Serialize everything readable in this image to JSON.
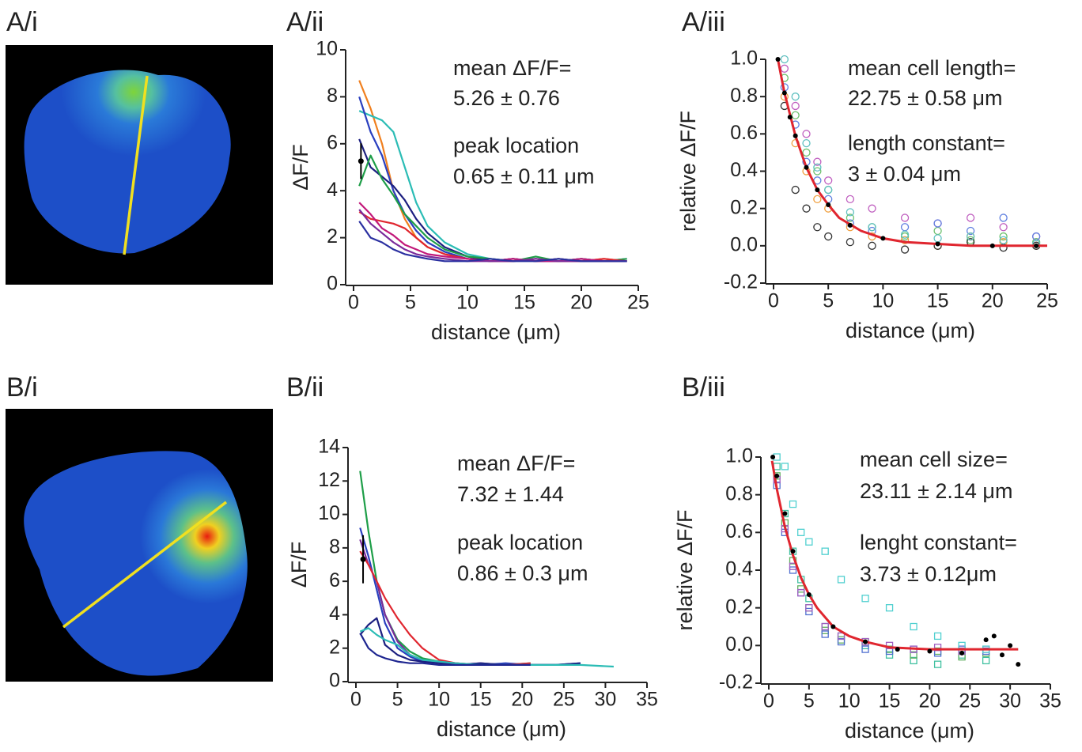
{
  "images": [
    {
      "label": "A/i"
    },
    {
      "label": "B/i"
    }
  ],
  "chart_data": [
    {
      "type": "line",
      "title": "A/ii",
      "xlabel": "distance (μm)",
      "ylabel": "ΔF/F",
      "xlim": [
        0,
        25
      ],
      "xticks": [
        0,
        5,
        10,
        15,
        20,
        25
      ],
      "ylim": [
        0,
        10
      ],
      "yticks": [
        0,
        2,
        4,
        6,
        8,
        10
      ],
      "annotations": [
        "mean ΔF/F=",
        "5.26 ± 0.76",
        "peak location",
        "0.65 ± 0.11 μm"
      ],
      "peak": {
        "x": 0.65,
        "y": 5.26,
        "yerr": 0.76
      },
      "x": [
        0.5,
        1.5,
        2.5,
        3.5,
        4.5,
        5.5,
        6.5,
        8,
        10,
        12,
        14,
        16,
        18,
        20,
        22,
        24
      ],
      "series": [
        {
          "color": "#f07f1e",
          "values": [
            8.7,
            7.5,
            6,
            4,
            2.8,
            2,
            1.6,
            1.3,
            1.1,
            1,
            1.1,
            1,
            1.1,
            1,
            1.1,
            1
          ]
        },
        {
          "color": "#2bbcb5",
          "values": [
            7.4,
            7.2,
            7,
            6.5,
            5,
            3.5,
            2.5,
            1.8,
            1.3,
            1.1,
            1,
            1.1,
            1,
            1.1,
            1,
            1
          ]
        },
        {
          "color": "#2a3fbf",
          "values": [
            8,
            6.5,
            5.5,
            4,
            3,
            2.3,
            1.8,
            1.4,
            1.1,
            1,
            1.1,
            1,
            1,
            1.1,
            1,
            1.1
          ]
        },
        {
          "color": "#1c1f80",
          "values": [
            6.2,
            5,
            4.6,
            4.2,
            3.6,
            2.8,
            2.2,
            1.6,
            1.2,
            1,
            1.1,
            1,
            1.1,
            1,
            1,
            1
          ]
        },
        {
          "color": "#1e9e48",
          "values": [
            4.2,
            5.5,
            4.5,
            3.8,
            3,
            2.5,
            2,
            1.5,
            1.2,
            1.1,
            1,
            1.2,
            1,
            1.1,
            1,
            1.1
          ]
        },
        {
          "color": "#e0262f",
          "values": [
            3.1,
            2.8,
            2.7,
            2.6,
            2.4,
            2,
            1.6,
            1.3,
            1.1,
            1,
            1,
            1.1,
            1,
            1,
            1.1,
            1
          ]
        },
        {
          "color": "#c2187a",
          "values": [
            3.5,
            3,
            2.4,
            2.1,
            1.7,
            1.5,
            1.3,
            1.2,
            1.1,
            1,
            1.1,
            1,
            1,
            1.1,
            1,
            1
          ]
        },
        {
          "color": "#7a2a9a",
          "values": [
            3.2,
            2.6,
            2.2,
            1.8,
            1.5,
            1.3,
            1.2,
            1.1,
            1,
            1,
            1,
            1.1,
            1,
            1,
            1,
            1
          ]
        },
        {
          "color": "#2a2fa0",
          "values": [
            2.7,
            2,
            1.8,
            1.5,
            1.3,
            1.2,
            1.1,
            1,
            1,
            1.1,
            1,
            1,
            1.1,
            1,
            1,
            1
          ]
        }
      ]
    },
    {
      "type": "scatter",
      "title": "A/iii",
      "xlabel": "distance (μm)",
      "ylabel": "relative ΔF/F",
      "marker": "circle",
      "xlim": [
        0,
        25
      ],
      "xticks": [
        0,
        5,
        10,
        15,
        20,
        25
      ],
      "ylim": [
        -0.2,
        1.0
      ],
      "yticks": [
        -0.2,
        {
          "value": 0,
          "label": "0.0"
        },
        0.2,
        0.4,
        0.6,
        0.8,
        {
          "value": 1,
          "label": "1.0"
        }
      ],
      "annotations": [
        "mean cell length=",
        "22.75 ± 0.58 μm",
        "length constant=",
        "3 ± 0.04 μm"
      ],
      "x": [
        1,
        2,
        3,
        4,
        5,
        7,
        9,
        12,
        15,
        18,
        21,
        24
      ],
      "series": [
        {
          "color": "#6cc06c",
          "values": [
            0.9,
            0.7,
            0.5,
            0.4,
            0.3,
            0.15,
            0.1,
            0.05,
            0.08,
            0.03,
            0.05,
            0.02
          ]
        },
        {
          "color": "#c060c0",
          "values": [
            0.95,
            0.75,
            0.6,
            0.45,
            0.35,
            0.25,
            0.2,
            0.15,
            0.12,
            0.15,
            0.1,
            0.05
          ]
        },
        {
          "color": "#6080e0",
          "values": [
            0.85,
            0.65,
            0.45,
            0.35,
            0.25,
            0.12,
            0.08,
            0.1,
            0.12,
            0.08,
            0.15,
            0.05
          ]
        },
        {
          "color": "#f0a040",
          "values": [
            0.8,
            0.55,
            0.4,
            0.25,
            0.2,
            0.1,
            0.05,
            0.03,
            0,
            0.05,
            0.02,
            0
          ]
        },
        {
          "color": "#333333",
          "values": [
            0.75,
            0.3,
            0.2,
            0.1,
            0.05,
            0.02,
            0,
            -0.02,
            0,
            0.02,
            -0.01,
            0
          ]
        },
        {
          "color": "#60c0c0",
          "values": [
            1.0,
            0.8,
            0.55,
            0.42,
            0.3,
            0.18,
            0.1,
            0.06,
            0.04,
            0.05,
            0.03,
            0.01
          ]
        }
      ],
      "mean": {
        "color": "#000000",
        "x": [
          0.4,
          1,
          1.5,
          2,
          3,
          4,
          5,
          7,
          10,
          15,
          20,
          24
        ],
        "values": [
          1.0,
          0.82,
          0.69,
          0.59,
          0.42,
          0.3,
          0.22,
          0.11,
          0.04,
          0.01,
          0.0,
          0.0
        ]
      },
      "fit": {
        "color": "#e0262f",
        "x": [
          0.4,
          1,
          2,
          3,
          4,
          5,
          6,
          8,
          10,
          12,
          15,
          18,
          21,
          25
        ],
        "values": [
          1.0,
          0.82,
          0.59,
          0.42,
          0.3,
          0.22,
          0.15,
          0.08,
          0.04,
          0.02,
          0.01,
          0.0,
          0.0,
          0.0
        ]
      }
    },
    {
      "type": "line",
      "title": "B/ii",
      "xlabel": "distance (μm)",
      "ylabel": "ΔF/F",
      "xlim": [
        0,
        35
      ],
      "xticks": [
        0,
        5,
        10,
        15,
        20,
        25,
        30,
        35
      ],
      "ylim": [
        0,
        14
      ],
      "yticks": [
        0,
        2,
        4,
        6,
        8,
        10,
        12,
        14
      ],
      "annotations": [
        "mean ΔF/F=",
        "7.32 ± 1.44",
        "peak location",
        "0.86 ± 0.3 μm"
      ],
      "peak": {
        "x": 0.86,
        "y": 7.32,
        "yerr": 1.44
      },
      "x": [
        0.5,
        1.5,
        2.5,
        3.5,
        5,
        6.5,
        8,
        10,
        12,
        15,
        18,
        21,
        24,
        27,
        31
      ],
      "series": [
        {
          "color": "#1e9e48",
          "values": [
            12.6,
            9,
            6,
            4,
            2.5,
            1.8,
            1.4,
            1.2,
            1.1,
            1,
            1,
            1.1,
            null,
            null,
            null
          ]
        },
        {
          "color": "#2a3fbf",
          "values": [
            9.2,
            7.5,
            5.5,
            3.5,
            2,
            1.5,
            1.2,
            1.1,
            1,
            1,
            1.1,
            1,
            1,
            1.1,
            null
          ]
        },
        {
          "color": "#7a2a9a",
          "values": [
            8.5,
            7,
            6,
            4,
            2.4,
            1.6,
            1.3,
            1.1,
            1,
            1.1,
            1,
            1,
            1,
            null,
            null
          ]
        },
        {
          "color": "#e0262f",
          "values": [
            7.8,
            7,
            6,
            5,
            3.8,
            2.8,
            2,
            1.3,
            1.1,
            1,
            1,
            1.1,
            null,
            null,
            null
          ]
        },
        {
          "color": "#1c1f80",
          "values": [
            2.8,
            3.4,
            3.8,
            2.2,
            1.6,
            1.3,
            1.2,
            1.1,
            1,
            1.1,
            1,
            1,
            1,
            1.1,
            null
          ]
        },
        {
          "color": "#2bbcb5",
          "values": [
            3,
            3.2,
            2.8,
            2.5,
            2.2,
            1.6,
            1.3,
            1.2,
            1.1,
            1,
            1,
            1,
            1,
            1,
            0.9
          ]
        },
        {
          "color": "#1e2690",
          "values": [
            2.9,
            2,
            1.6,
            1.4,
            1.2,
            1.1,
            1.1,
            1,
            1,
            1,
            1,
            1,
            null,
            null,
            null
          ]
        }
      ]
    },
    {
      "type": "scatter",
      "title": "B/iii",
      "xlabel": "distance (μm)",
      "ylabel": "relative ΔF/F",
      "marker": "square",
      "xlim": [
        0,
        35
      ],
      "xticks": [
        0,
        5,
        10,
        15,
        20,
        25,
        30,
        35
      ],
      "ylim": [
        -0.2,
        1.0
      ],
      "yticks": [
        -0.2,
        {
          "value": 0,
          "label": "0.0"
        },
        0.2,
        0.4,
        0.6,
        0.8,
        {
          "value": 1,
          "label": "1.0"
        }
      ],
      "annotations": [
        "mean cell size=",
        "23.11 ± 2.14 μm",
        "lenght constant=",
        "3.73 ± 0.12μm"
      ],
      "x": [
        1,
        2,
        3,
        4,
        5,
        7,
        9,
        12,
        15,
        18,
        21,
        24,
        27
      ],
      "series": [
        {
          "color": "#40c0a0",
          "values": [
            0.95,
            0.7,
            0.5,
            0.35,
            0.25,
            0.1,
            0.05,
            0,
            -0.05,
            -0.08,
            -0.1,
            -0.05,
            -0.08
          ]
        },
        {
          "color": "#60b060",
          "values": [
            0.9,
            0.65,
            0.45,
            0.3,
            0.2,
            0.08,
            0.03,
            0.02,
            -0.02,
            -0.05,
            -0.03,
            -0.06,
            -0.04
          ]
        },
        {
          "color": "#5070d0",
          "values": [
            0.85,
            0.6,
            0.4,
            0.28,
            0.18,
            0.06,
            0.02,
            -0.02,
            -0.03,
            -0.02,
            -0.04,
            -0.02,
            -0.03
          ]
        },
        {
          "color": "#a060c0",
          "values": [
            0.88,
            0.62,
            0.42,
            0.28,
            0.2,
            0.1,
            0.05,
            0.02,
            0,
            -0.02,
            -0.01,
            -0.03,
            -0.02
          ]
        },
        {
          "color": "#50d0d0",
          "values": [
            1.0,
            0.95,
            0.75,
            0.6,
            0.55,
            0.5,
            0.35,
            0.25,
            0.2,
            0.1,
            0.05,
            0,
            -0.02
          ]
        }
      ],
      "mean": {
        "color": "#000000",
        "x": [
          0.5,
          1,
          2,
          3,
          5,
          8,
          12,
          16,
          20,
          24,
          27,
          28,
          29,
          30,
          31
        ],
        "values": [
          1.0,
          0.9,
          0.7,
          0.5,
          0.27,
          0.1,
          0.02,
          -0.02,
          -0.03,
          -0.04,
          0.03,
          0.05,
          -0.05,
          0.0,
          -0.1
        ]
      },
      "fit": {
        "color": "#e0262f",
        "x": [
          0.4,
          1,
          2,
          3,
          4,
          5,
          6,
          8,
          10,
          12,
          15,
          20,
          25,
          31
        ],
        "values": [
          0.98,
          0.83,
          0.63,
          0.48,
          0.36,
          0.27,
          0.2,
          0.1,
          0.05,
          0.02,
          -0.01,
          -0.02,
          -0.02,
          -0.02
        ]
      }
    }
  ]
}
